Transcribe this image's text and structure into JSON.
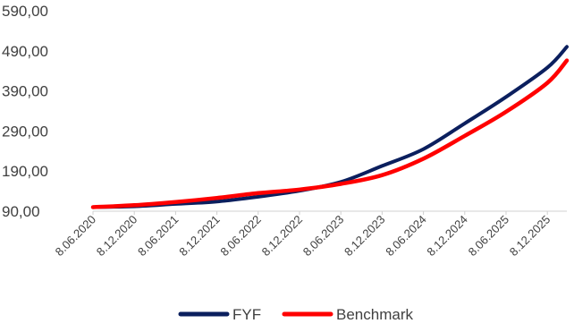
{
  "chart_data": {
    "type": "line",
    "title": "",
    "xlabel": "",
    "ylabel": "",
    "y_tick_labels": [
      "90,00",
      "190,00",
      "290,00",
      "390,00",
      "490,00",
      "590,00"
    ],
    "y_ticks": [
      90,
      190,
      290,
      390,
      490,
      590
    ],
    "ylim": [
      90,
      590
    ],
    "x_tick_labels": [
      "8.06.2020",
      "8.12.2020",
      "8.06.2021",
      "8.12.2021",
      "8.06.2022",
      "8.12.2022",
      "8.06.2023",
      "8.12.2023",
      "8.06.2024",
      "8.12.2024",
      "8.06.2025",
      "8.12.2025"
    ],
    "x": [
      "8.06.2020",
      "8.12.2020",
      "8.06.2021",
      "8.12.2021",
      "8.06.2022",
      "8.12.2022",
      "8.06.2023",
      "8.12.2023",
      "8.06.2024",
      "8.12.2024",
      "8.06.2025",
      "8.12.2025",
      "10.2026"
    ],
    "xlim": [
      "8.06.2020",
      "10.2026"
    ],
    "series": [
      {
        "name": "FYF",
        "color": "#0b1f5e",
        "values": [
          100,
          102,
          108,
          114,
          126,
          141,
          163,
          203,
          245,
          309,
          375,
          448,
          500
        ]
      },
      {
        "name": "Benchmark",
        "color": "#ff0000",
        "values": [
          100,
          105,
          113,
          123,
          135,
          144,
          158,
          180,
          221,
          278,
          338,
          410,
          466
        ]
      }
    ],
    "legend_position": "bottom",
    "grid": false
  }
}
